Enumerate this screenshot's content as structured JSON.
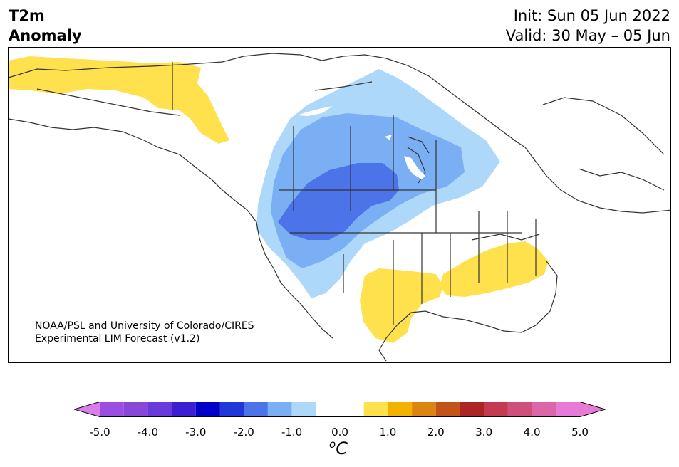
{
  "title": {
    "left_line1": "T2m",
    "left_line2": "Anomaly",
    "right_line1": "Init: Sun 05 Jun 2022",
    "right_line2": "Valid: 30 May – 05 Jun"
  },
  "credit": {
    "line1": "NOAA/PSL and University of Colorado/CIRES",
    "line2": "Experimental LIM Forecast (v1.2)"
  },
  "colorbar": {
    "unit": "C",
    "unit_prefix": "o",
    "ticks": [
      "-5.0",
      "-4.0",
      "-3.0",
      "-2.0",
      "-1.0",
      "0.0",
      "1.0",
      "2.0",
      "3.0",
      "4.0",
      "5.0"
    ],
    "bins": [
      {
        "range": [
          -5.0,
          -4.5
        ],
        "color": "#9b4fe0"
      },
      {
        "range": [
          -4.5,
          -4.0
        ],
        "color": "#8a45d9"
      },
      {
        "range": [
          -4.0,
          -3.5
        ],
        "color": "#6a3bdb"
      },
      {
        "range": [
          -3.5,
          -3.0
        ],
        "color": "#3b1fd1"
      },
      {
        "range": [
          -3.0,
          -2.5
        ],
        "color": "#0000c8"
      },
      {
        "range": [
          -2.5,
          -2.0
        ],
        "color": "#2037d9"
      },
      {
        "range": [
          -2.0,
          -1.5
        ],
        "color": "#4d73e8"
      },
      {
        "range": [
          -1.5,
          -1.0
        ],
        "color": "#7aaff3"
      },
      {
        "range": [
          -1.0,
          -0.5
        ],
        "color": "#aed8f9"
      },
      {
        "range": [
          -0.5,
          0.5
        ],
        "color": "#ffffff"
      },
      {
        "range": [
          0.5,
          1.0
        ],
        "color": "#ffe14d"
      },
      {
        "range": [
          1.0,
          1.5
        ],
        "color": "#f2b300"
      },
      {
        "range": [
          1.5,
          2.0
        ],
        "color": "#db8412"
      },
      {
        "range": [
          2.0,
          2.5
        ],
        "color": "#c4531a"
      },
      {
        "range": [
          2.5,
          3.0
        ],
        "color": "#ad2424"
      },
      {
        "range": [
          3.0,
          3.5
        ],
        "color": "#c43a51"
      },
      {
        "range": [
          3.5,
          4.0
        ],
        "color": "#cf4e7c"
      },
      {
        "range": [
          4.0,
          4.5
        ],
        "color": "#db66a8"
      },
      {
        "range": [
          4.5,
          5.0
        ],
        "color": "#e87ad7"
      }
    ],
    "under_color": "#d97de8",
    "over_color": "#e87ad7"
  },
  "map_layers": {
    "warm_anomaly_color": "#ffe14d",
    "cool_light_color": "#aed8f9",
    "cool_mid_color": "#7aaff3",
    "cool_deep_color": "#4d73e8",
    "coastline_color": "#333333"
  }
}
